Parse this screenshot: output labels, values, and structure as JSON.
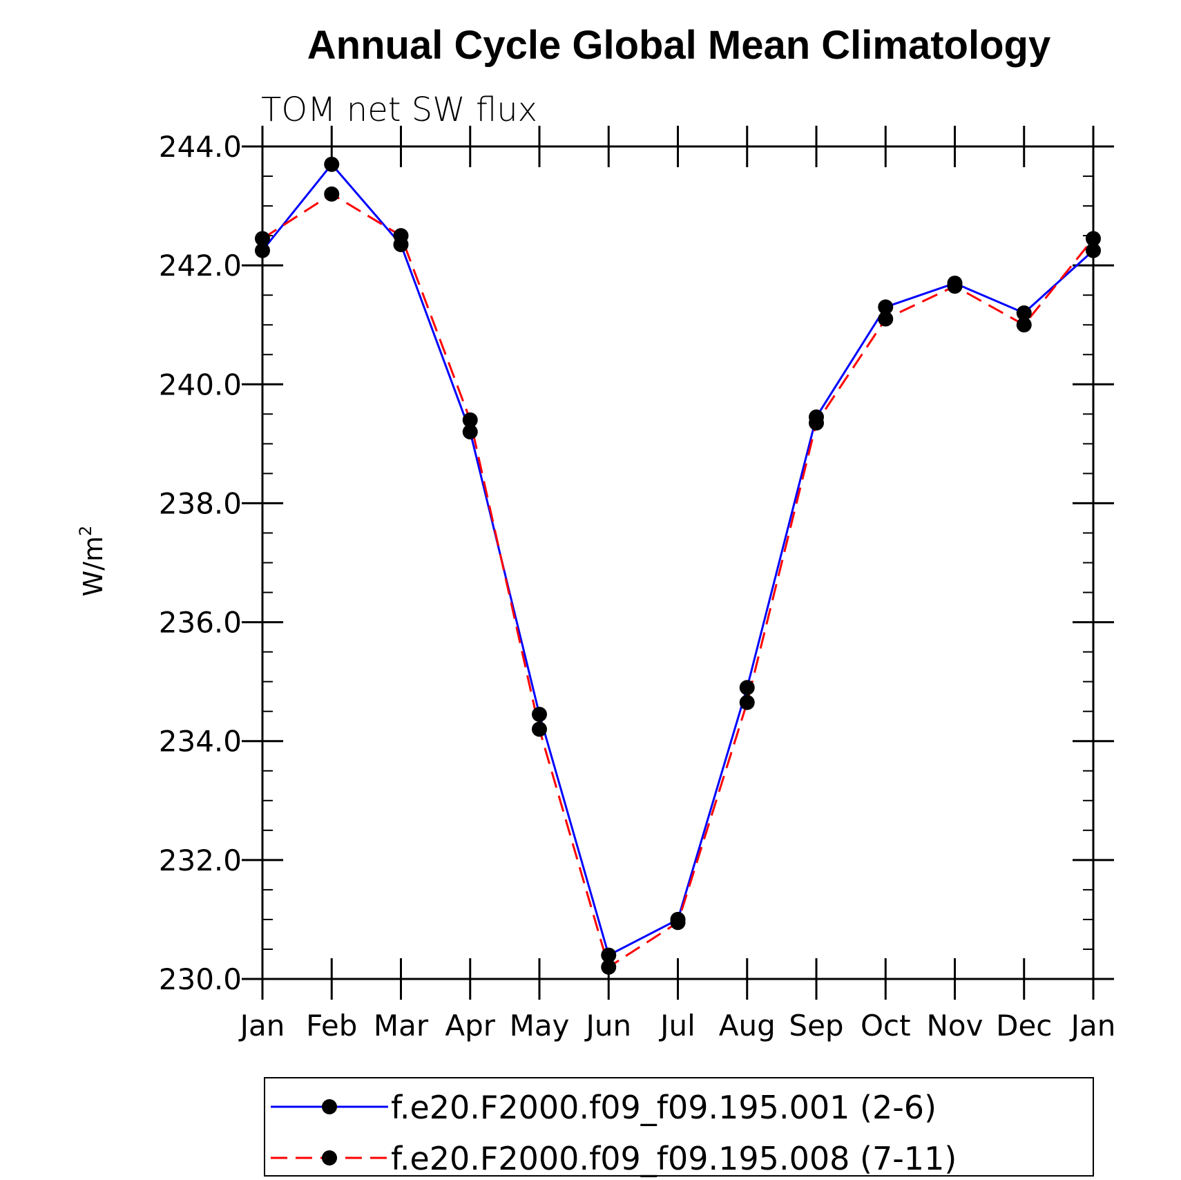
{
  "chart_data": {
    "type": "line",
    "title": "Annual Cycle Global Mean Climatology",
    "subtitle": "TOM net SW flux",
    "ylabel": "W/m",
    "ylabel_sup": "2",
    "ylim": [
      230,
      244
    ],
    "yticks": [
      "230.0",
      "232.0",
      "234.0",
      "236.0",
      "238.0",
      "240.0",
      "242.0",
      "244.0"
    ],
    "categories": [
      "Jan",
      "Feb",
      "Mar",
      "Apr",
      "May",
      "Jun",
      "Jul",
      "Aug",
      "Sep",
      "Oct",
      "Nov",
      "Dec",
      "Jan"
    ],
    "grid": false,
    "legend_position": "bottom",
    "series": [
      {
        "name": "f.e20.F2000.f09_f09.195.001 (2-6)",
        "color": "#0000ff",
        "line_style": "solid",
        "marker": "filled-circle",
        "values": [
          242.25,
          243.7,
          242.35,
          239.2,
          234.45,
          230.4,
          231.0,
          234.9,
          239.45,
          241.3,
          241.7,
          241.2,
          242.25
        ]
      },
      {
        "name": "f.e20.F2000.f09_f09.195.008 (7-11)",
        "color": "#ff0000",
        "line_style": "dashed",
        "marker": "filled-circle",
        "values": [
          242.45,
          243.2,
          242.5,
          239.4,
          234.2,
          230.2,
          230.95,
          234.65,
          239.35,
          241.1,
          241.65,
          241.0,
          242.45
        ]
      }
    ]
  }
}
